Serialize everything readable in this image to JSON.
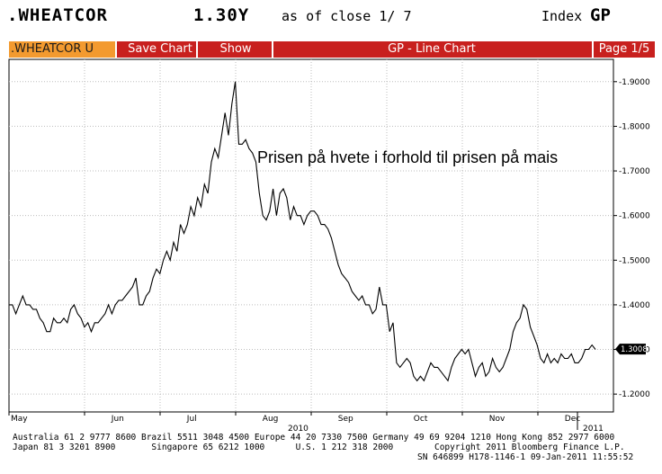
{
  "header": {
    "ticker": ".WHEATCOR",
    "ratio": "1.30Y",
    "as_of": "as of close  1/ 7",
    "index_label": "Index",
    "index_value": "GP"
  },
  "toolbar": {
    "security": ".WHEATCOR U IND",
    "save_chart": "Save Chart",
    "show": "Show",
    "title": "GP - Line Chart",
    "page": "Page 1/5"
  },
  "chart_data": {
    "type": "line",
    "annotation": "Prisen på hvete i forhold til prisen på mais",
    "x_labels": [
      "May",
      "Jun",
      "Jul",
      "Aug",
      "Sep",
      "Oct",
      "Nov",
      "Dec"
    ],
    "year_labels": [
      "2010",
      "2011"
    ],
    "y_ticks": [
      "1.9000",
      "1.8000",
      "1.7000",
      "1.6000",
      "1.5000",
      "1.4000",
      "1.3000",
      "1.2000"
    ],
    "ylim": [
      1.16,
      1.95
    ],
    "last_value": "1.3008",
    "grid": true,
    "values": [
      1.4,
      1.4,
      1.38,
      1.4,
      1.42,
      1.4,
      1.4,
      1.39,
      1.39,
      1.37,
      1.36,
      1.34,
      1.34,
      1.37,
      1.36,
      1.36,
      1.37,
      1.36,
      1.39,
      1.4,
      1.38,
      1.37,
      1.35,
      1.36,
      1.34,
      1.36,
      1.36,
      1.37,
      1.38,
      1.4,
      1.38,
      1.4,
      1.41,
      1.41,
      1.42,
      1.43,
      1.44,
      1.46,
      1.4,
      1.4,
      1.42,
      1.43,
      1.46,
      1.48,
      1.47,
      1.5,
      1.52,
      1.5,
      1.54,
      1.52,
      1.58,
      1.56,
      1.58,
      1.62,
      1.6,
      1.64,
      1.62,
      1.67,
      1.65,
      1.72,
      1.75,
      1.73,
      1.78,
      1.83,
      1.78,
      1.85,
      1.9,
      1.76,
      1.76,
      1.77,
      1.75,
      1.74,
      1.72,
      1.65,
      1.6,
      1.59,
      1.61,
      1.66,
      1.6,
      1.65,
      1.66,
      1.64,
      1.59,
      1.62,
      1.6,
      1.6,
      1.58,
      1.6,
      1.61,
      1.61,
      1.6,
      1.58,
      1.58,
      1.57,
      1.55,
      1.52,
      1.49,
      1.47,
      1.46,
      1.45,
      1.43,
      1.42,
      1.41,
      1.42,
      1.4,
      1.4,
      1.38,
      1.39,
      1.44,
      1.4,
      1.4,
      1.34,
      1.36,
      1.27,
      1.26,
      1.27,
      1.28,
      1.27,
      1.24,
      1.23,
      1.24,
      1.23,
      1.25,
      1.27,
      1.26,
      1.26,
      1.25,
      1.24,
      1.23,
      1.26,
      1.28,
      1.29,
      1.3,
      1.29,
      1.3,
      1.27,
      1.24,
      1.26,
      1.27,
      1.24,
      1.25,
      1.28,
      1.26,
      1.25,
      1.26,
      1.28,
      1.3,
      1.34,
      1.36,
      1.37,
      1.4,
      1.39,
      1.35,
      1.33,
      1.31,
      1.28,
      1.27,
      1.29,
      1.27,
      1.28,
      1.27,
      1.29,
      1.28,
      1.28,
      1.29,
      1.27,
      1.27,
      1.28,
      1.3,
      1.3,
      1.31,
      1.3
    ]
  },
  "footer": {
    "line1": "Australia 61 2 9777 8600 Brazil 5511 3048 4500 Europe 44 20 7330 7500 Germany 49 69 9204 1210 Hong Kong 852 2977 6000",
    "line2": "Japan 81 3 3201 8900       Singapore 65 6212 1000      U.S. 1 212 318 2000        Copyright 2011 Bloomberg Finance L.P.",
    "line3": "SN 646899 H178-1146-1 09-Jan-2011 11:55:52"
  }
}
